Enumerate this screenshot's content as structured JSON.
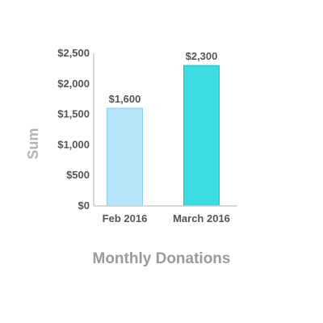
{
  "chart_data": {
    "type": "bar",
    "categories": [
      "Feb 2016",
      "March 2016"
    ],
    "values": [
      1600,
      2300
    ],
    "value_labels": [
      "$1,600",
      "$2,300"
    ],
    "bar_colors": [
      "#b7e6fb",
      "#3ddce0"
    ],
    "bar_edge_colors": [
      "#8ecde8",
      "#23bfc4"
    ],
    "ylabel": "Sum",
    "xlabel": "Monthly Donations",
    "ylim": [
      0,
      2500
    ],
    "yticks": [
      0,
      500,
      1000,
      1500,
      2000,
      2500
    ],
    "ytick_labels": [
      "$0",
      "$500",
      "$1,000",
      "$1,500",
      "$2,000",
      "$2,500"
    ],
    "grid": false,
    "axis_color": "#cccccc"
  }
}
